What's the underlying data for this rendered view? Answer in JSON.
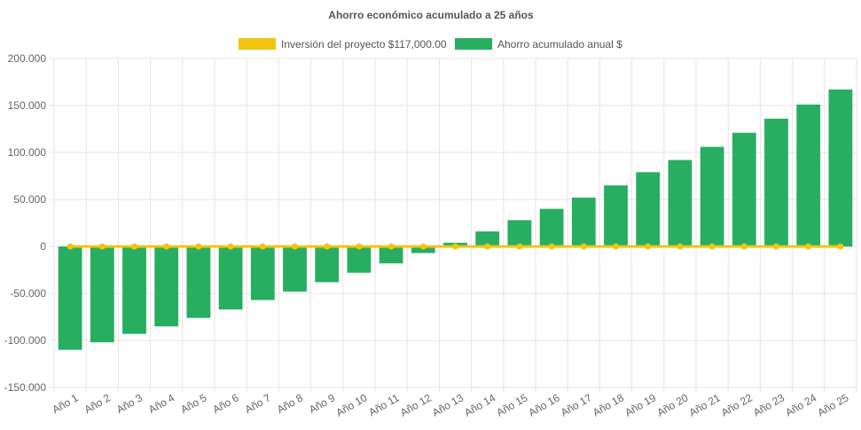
{
  "chart_data": {
    "type": "bar",
    "title": "Ahorro económico acumulado a 25 años",
    "xlabel": "",
    "ylabel": "",
    "ylim": [
      -150000,
      200000
    ],
    "yticks": [
      "200.000",
      "150.000",
      "100.000",
      "50.000",
      "0",
      "-50.000",
      "-100.000",
      "-150.000"
    ],
    "ytick_values": [
      200000,
      150000,
      100000,
      50000,
      0,
      -50000,
      -100000,
      -150000
    ],
    "categories": [
      "Año 1",
      "Año 2",
      "Año 3",
      "Año 4",
      "Año 5",
      "Año 6",
      "Año 7",
      "Año 8",
      "Año 9",
      "Año 10",
      "Año 11",
      "Año 12",
      "Año 13",
      "Año 14",
      "Año 15",
      "Año 16",
      "Año 17",
      "Año 18",
      "Año 19",
      "Año 20",
      "Año 21",
      "Año 22",
      "Año 23",
      "Año 24",
      "Año 25"
    ],
    "grid": true,
    "legend_position": "top",
    "series": [
      {
        "name": "Inversión del proyecto $117,000.00",
        "type": "line",
        "color": "#f1c40f",
        "values": [
          0,
          0,
          0,
          0,
          0,
          0,
          0,
          0,
          0,
          0,
          0,
          0,
          0,
          0,
          0,
          0,
          0,
          0,
          0,
          0,
          0,
          0,
          0,
          0,
          0
        ]
      },
      {
        "name": "Ahorro acumulado anual $",
        "type": "bar",
        "color": "#27ae60",
        "values": [
          -110000,
          -102000,
          -93000,
          -85000,
          -76000,
          -67000,
          -57000,
          -48000,
          -38000,
          -28000,
          -18000,
          -7000,
          4000,
          16000,
          28000,
          40000,
          52000,
          65000,
          79000,
          92000,
          106000,
          121000,
          136000,
          151000,
          167000
        ]
      }
    ]
  }
}
